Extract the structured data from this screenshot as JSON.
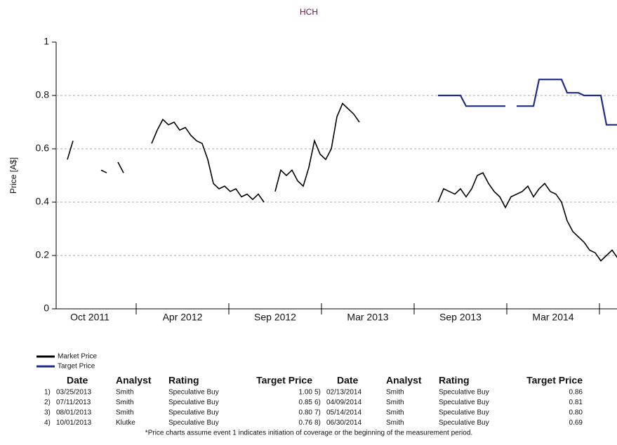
{
  "chart_data": {
    "type": "line",
    "title": "HCH",
    "y_label": "Price [A$]",
    "xlim": [
      0,
      100
    ],
    "ylim": [
      0,
      1
    ],
    "yticks": [
      0,
      0.2,
      0.4,
      0.6,
      0.8,
      1
    ],
    "grid": true,
    "xticks": [
      {
        "value": 6,
        "label": "Oct 2011"
      },
      {
        "value": 22.5,
        "label": "Apr 2012"
      },
      {
        "value": 39,
        "label": "Sep 2012"
      },
      {
        "value": 55.5,
        "label": "Mar 2013"
      },
      {
        "value": 72,
        "label": "Sep 2013"
      },
      {
        "value": 88.5,
        "label": "Mar 2014"
      }
    ],
    "series": [
      {
        "name": "Market Price",
        "color": "#000000",
        "values": [
          null,
          null,
          0.56,
          0.63,
          null,
          null,
          null,
          null,
          0.52,
          0.51,
          null,
          0.55,
          0.51,
          null,
          null,
          null,
          null,
          0.62,
          0.67,
          0.71,
          0.69,
          0.7,
          0.67,
          0.68,
          0.65,
          0.63,
          0.62,
          0.56,
          0.47,
          0.45,
          0.46,
          0.44,
          0.45,
          0.42,
          0.43,
          0.41,
          0.43,
          0.4,
          null,
          0.44,
          0.52,
          0.5,
          0.52,
          0.48,
          0.46,
          0.53,
          0.63,
          0.58,
          0.56,
          0.6,
          0.72,
          0.77,
          0.75,
          0.73,
          0.7,
          null,
          null,
          null,
          null,
          null,
          null,
          null,
          null,
          null,
          null,
          null,
          null,
          null,
          0.4,
          0.45,
          0.44,
          0.43,
          0.45,
          0.42,
          0.45,
          0.5,
          0.51,
          0.47,
          0.44,
          0.42,
          0.38,
          0.42,
          0.43,
          0.44,
          0.46,
          0.42,
          0.45,
          0.47,
          0.44,
          0.43,
          0.4,
          0.33,
          0.29,
          0.27,
          0.25,
          0.22,
          0.21,
          0.18,
          0.2,
          0.22,
          0.19
        ]
      },
      {
        "name": "Target Price",
        "color": "#1f2a8a",
        "values": [
          null,
          null,
          null,
          null,
          null,
          null,
          null,
          null,
          null,
          null,
          null,
          null,
          null,
          null,
          null,
          null,
          null,
          null,
          null,
          null,
          null,
          null,
          null,
          null,
          null,
          null,
          null,
          null,
          null,
          null,
          null,
          null,
          null,
          null,
          null,
          null,
          null,
          null,
          null,
          null,
          null,
          null,
          null,
          null,
          null,
          null,
          null,
          null,
          null,
          null,
          null,
          null,
          null,
          null,
          null,
          null,
          null,
          null,
          null,
          null,
          null,
          null,
          null,
          null,
          null,
          null,
          null,
          null,
          0.8,
          0.8,
          0.8,
          0.8,
          0.8,
          0.76,
          0.76,
          0.76,
          0.76,
          0.76,
          0.76,
          0.76,
          0.76,
          null,
          0.76,
          0.76,
          0.76,
          0.76,
          0.86,
          0.86,
          0.86,
          0.86,
          0.86,
          0.81,
          0.81,
          0.81,
          0.8,
          0.8,
          0.8,
          0.8,
          0.69,
          0.69,
          0.69
        ]
      }
    ]
  },
  "table": {
    "headers": [
      "Date",
      "Analyst",
      "Rating",
      "Target Price",
      "Date",
      "Analyst",
      "Rating",
      "Target Price"
    ],
    "rows": [
      [
        "1)",
        "03/25/2013",
        "Smith",
        "Speculative Buy",
        "1.00"
      ],
      [
        "2)",
        "07/11/2013",
        "Smith",
        "Speculative Buy",
        "0.85"
      ],
      [
        "3)",
        "08/01/2013",
        "Smith",
        "Speculative Buy",
        "0.80"
      ],
      [
        "4)",
        "10/01/2013",
        "Klutke",
        "Speculative Buy",
        "0.76"
      ],
      [
        "5)",
        "02/13/2014",
        "Smith",
        "Speculative Buy",
        "0.86"
      ],
      [
        "6)",
        "04/09/2014",
        "Smith",
        "Speculative Buy",
        "0.81"
      ],
      [
        "7)",
        "05/14/2014",
        "Smith",
        "Speculative Buy",
        "0.80"
      ],
      [
        "8)",
        "06/30/2014",
        "Smith",
        "Speculative Buy",
        "0.69"
      ]
    ]
  },
  "footnote": "*Price charts assume event 1 indicates initiation of coverage or the beginning of the measurement period."
}
